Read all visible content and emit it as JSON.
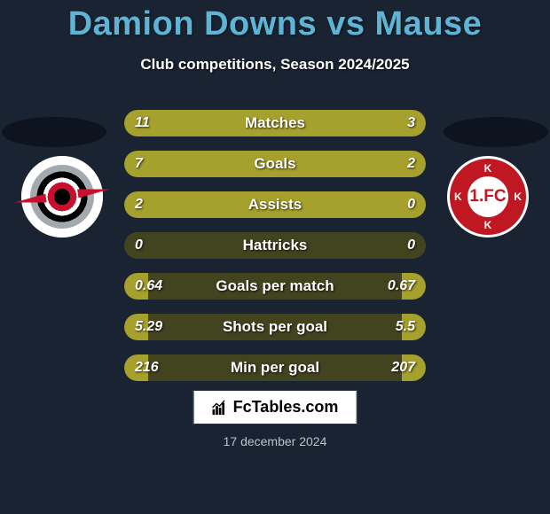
{
  "title": "Damion Downs vs Mause",
  "subtitle": "Club competitions, Season 2024/2025",
  "date": "17 december 2024",
  "brand": "FcTables.com",
  "colors": {
    "background": "#1a2332",
    "title": "#5db4d4",
    "bar_track": "#42431f",
    "bar_fill": "#a6a02c",
    "shadow": "#0d141f",
    "team_right_primary": "#c01823",
    "team_left_primary": "#c8102e"
  },
  "team_right_inner_text": "1.FC",
  "team_right_ring_char": "K",
  "bars": [
    {
      "label": "Matches",
      "left_val": "11",
      "right_val": "3",
      "left_pct": 78,
      "right_pct": 22
    },
    {
      "label": "Goals",
      "left_val": "7",
      "right_val": "2",
      "left_pct": 78,
      "right_pct": 22
    },
    {
      "label": "Assists",
      "left_val": "2",
      "right_val": "0",
      "left_pct": 100,
      "right_pct": 0
    },
    {
      "label": "Hattricks",
      "left_val": "0",
      "right_val": "0",
      "left_pct": 0,
      "right_pct": 0
    },
    {
      "label": "Goals per match",
      "left_val": "0.64",
      "right_val": "0.67",
      "left_pct": 8,
      "right_pct": 8
    },
    {
      "label": "Shots per goal",
      "left_val": "5.29",
      "right_val": "5.5",
      "left_pct": 8,
      "right_pct": 8
    },
    {
      "label": "Min per goal",
      "left_val": "216",
      "right_val": "207",
      "left_pct": 8,
      "right_pct": 8
    }
  ]
}
